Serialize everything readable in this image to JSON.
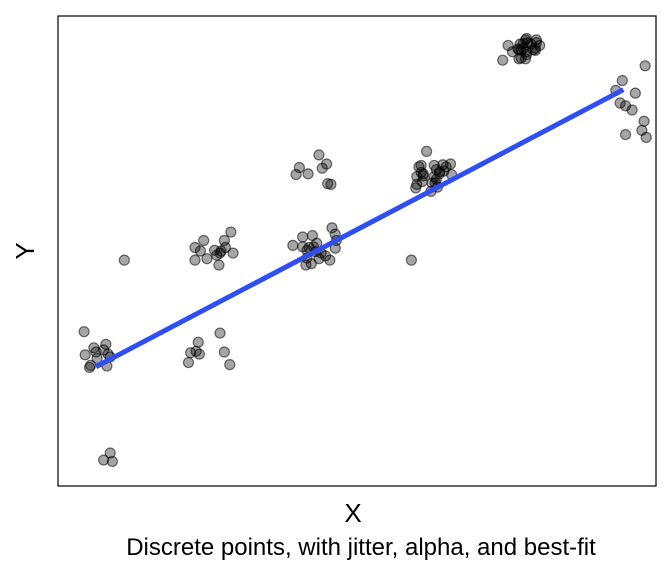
{
  "chart_data": {
    "type": "scatter",
    "title": "",
    "caption": "Discrete points, with jitter, alpha, and best-fit",
    "xlabel": "X",
    "ylabel": "Y",
    "xlim": [
      -0.2,
      5.3
    ],
    "ylim": [
      -0.7,
      6.0
    ],
    "grid": false,
    "ticks_shown": false,
    "point_color": "#000000",
    "point_alpha": 0.35,
    "fit_line_color": "#2f4ff0",
    "fit_line": {
      "x": [
        0.15,
        5.0
      ],
      "y": [
        1.0,
        4.95
      ]
    },
    "series": [
      {
        "x": [
          0.04,
          0.28,
          0.09,
          0.16,
          0.26,
          0.13,
          0.22,
          0.15,
          0.25,
          0.41,
          0.28,
          0.3,
          0.22,
          0.1,
          0.05,
          0.24,
          1.0,
          1.06,
          1.11,
          1.06,
          1.17,
          1.14,
          1.24,
          1.3,
          1.29,
          1.34,
          1.33,
          1.28,
          1.26,
          1.39,
          1.41,
          1.02,
          1.07,
          1.09,
          1.1,
          1.38,
          1.29,
          1.33,
          1.96,
          2.05,
          2.08,
          2.31,
          2.27,
          2.23,
          2.2,
          2.28,
          2.09,
          2.05,
          2.09,
          2.22,
          2.36,
          2.35,
          2.32,
          2.13,
          2.17,
          2.11,
          2.18,
          2.26,
          2.15,
          2.35,
          2.2,
          2.14,
          2.3,
          2.02,
          2.1,
          1.99,
          3.05,
          3.26,
          3.27,
          3.31,
          3.23,
          3.28,
          3.16,
          3.37,
          3.34,
          3.29,
          3.31,
          3.12,
          3.24,
          3.28,
          3.09,
          3.19,
          3.16,
          3.42,
          3.35,
          3.41,
          3.14,
          3.15,
          3.1,
          3.14,
          3.26,
          3.1,
          3.89,
          3.94,
          3.98,
          4.1,
          4.12,
          4.17,
          4.11,
          4.04,
          4.19,
          4.2,
          4.15,
          4.05,
          4.08,
          4.06,
          4.06,
          4.04,
          4.2,
          4.11,
          4.1,
          4.23,
          4.19,
          4.03,
          4.08,
          4.11,
          4.93,
          4.97,
          5.02,
          5.02,
          5.2,
          4.99,
          5.11,
          5.08,
          5.19,
          5.17,
          5.21
        ],
        "y": [
          1.5,
          1.14,
          0.99,
          1.12,
          1.18,
          1.27,
          1.24,
          1.21,
          1.01,
          2.52,
          -0.23,
          -0.35,
          -0.33,
          1.02,
          1.17,
          1.32,
          1.06,
          2.52,
          2.65,
          2.7,
          2.54,
          2.8,
          2.66,
          2.65,
          2.62,
          2.7,
          2.8,
          2.45,
          2.59,
          2.92,
          2.62,
          1.2,
          1.22,
          1.35,
          1.18,
          1.03,
          1.48,
          1.21,
          2.73,
          2.71,
          2.45,
          3.6,
          3.89,
          3.83,
          4.02,
          3.61,
          2.55,
          2.85,
          2.66,
          2.62,
          2.8,
          2.89,
          2.98,
          2.47,
          2.64,
          2.7,
          2.76,
          2.58,
          2.71,
          2.69,
          2.54,
          2.87,
          2.52,
          3.84,
          3.75,
          3.74,
          2.52,
          3.71,
          3.62,
          3.78,
          3.5,
          3.81,
          3.72,
          3.85,
          3.88,
          3.56,
          3.75,
          3.85,
          3.62,
          3.67,
          3.55,
          4.07,
          3.75,
          3.74,
          3.79,
          3.89,
          3.87,
          3.64,
          3.71,
          3.77,
          3.87,
          3.6,
          5.37,
          5.58,
          5.49,
          5.66,
          5.62,
          5.52,
          5.49,
          5.39,
          5.54,
          5.62,
          5.6,
          5.6,
          5.61,
          5.51,
          5.4,
          5.52,
          5.66,
          5.45,
          5.39,
          5.58,
          5.51,
          5.53,
          5.54,
          5.68,
          4.94,
          4.76,
          4.72,
          4.31,
          5.29,
          5.08,
          4.9,
          4.66,
          4.5,
          4.37,
          4.27
        ]
      }
    ]
  }
}
